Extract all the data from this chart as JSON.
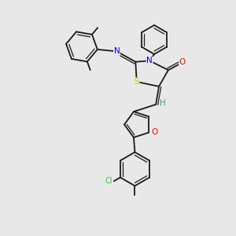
{
  "background_color": "#e8e8e8",
  "bond_color": "#1a1a1a",
  "atom_colors": {
    "N": "#0000ee",
    "O": "#ff0000",
    "S": "#cccc00",
    "Cl": "#33cc33",
    "H": "#339999"
  },
  "lw": 1.3,
  "lw_inner": 0.9,
  "fs": 7.5
}
